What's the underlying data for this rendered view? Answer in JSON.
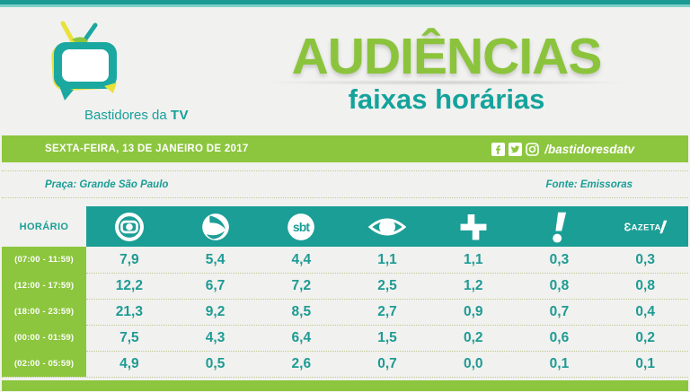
{
  "header": {
    "title": "AUDIÊNCIAS",
    "subtitle": "faixas horárias"
  },
  "logo": {
    "name": "Bastidores da TV",
    "text_regular": "Bastidores da ",
    "text_bold": "TV"
  },
  "date_bar": {
    "date": "SEXTA-FEIRA, 13 DE JANEIRO DE 2017",
    "social_icons": [
      "facebook-icon",
      "twitter-icon",
      "instagram-icon"
    ],
    "social_handle": "/bastidoresdatv"
  },
  "meta": {
    "praca": "Praça: Grande São Paulo",
    "fonte": "Fonte: Emissoras"
  },
  "colors": {
    "teal": "#1b9e96",
    "lime": "#8cc63e",
    "background": "#f1f1ef"
  },
  "chart_data": {
    "type": "table",
    "title": "Audiências por faixas horárias - Sexta-feira, 13 de Janeiro de 2017",
    "columns": [
      "Globo",
      "Record",
      "SBT",
      "Band",
      "TV Cultura",
      "RedeTV!",
      "Gazeta"
    ],
    "rows": [
      {
        "time": "(07:00 - 11:59)",
        "values": [
          7.9,
          5.4,
          4.4,
          1.1,
          1.1,
          0.3,
          0.3
        ]
      },
      {
        "time": "(12:00 - 17:59)",
        "values": [
          12.2,
          6.7,
          7.2,
          2.5,
          1.2,
          0.8,
          0.8
        ]
      },
      {
        "time": "(18:00 - 23:59)",
        "values": [
          21.3,
          9.2,
          8.5,
          2.7,
          0.9,
          0.7,
          0.4
        ]
      },
      {
        "time": "(00:00 - 01:59)",
        "values": [
          7.5,
          4.3,
          6.4,
          1.5,
          0.2,
          0.6,
          0.2
        ]
      },
      {
        "time": "(02:00 - 05:59)",
        "values": [
          4.9,
          0.5,
          2.6,
          0.7,
          0.0,
          0.1,
          0.1
        ]
      }
    ]
  },
  "table": {
    "horario_label": "HORÁRIO",
    "networks": [
      {
        "name": "Globo",
        "icon": "globo"
      },
      {
        "name": "Record",
        "icon": "record"
      },
      {
        "name": "SBT",
        "icon": "sbt"
      },
      {
        "name": "Band",
        "icon": "band"
      },
      {
        "name": "TV Cultura",
        "icon": "cultura"
      },
      {
        "name": "RedeTV!",
        "icon": "redetv"
      },
      {
        "name": "Gazeta",
        "icon": "gazeta"
      }
    ],
    "rows": [
      {
        "time": "(07:00 - 11:59)",
        "values": [
          "7,9",
          "5,4",
          "4,4",
          "1,1",
          "1,1",
          "0,3",
          "0,3"
        ]
      },
      {
        "time": "(12:00 - 17:59)",
        "values": [
          "12,2",
          "6,7",
          "7,2",
          "2,5",
          "1,2",
          "0,8",
          "0,8"
        ]
      },
      {
        "time": "(18:00 - 23:59)",
        "values": [
          "21,3",
          "9,2",
          "8,5",
          "2,7",
          "0,9",
          "0,7",
          "0,4"
        ]
      },
      {
        "time": "(00:00 - 01:59)",
        "values": [
          "7,5",
          "4,3",
          "6,4",
          "1,5",
          "0,2",
          "0,6",
          "0,2"
        ]
      },
      {
        "time": "(02:00 - 05:59)",
        "values": [
          "4,9",
          "0,5",
          "2,6",
          "0,7",
          "0,0",
          "0,1",
          "0,1"
        ]
      }
    ]
  }
}
